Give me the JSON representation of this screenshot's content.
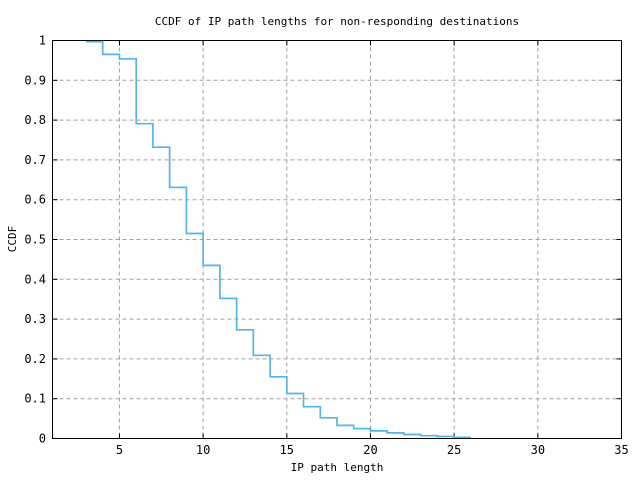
{
  "chart_data": {
    "type": "line",
    "subtype": "step-ccdf",
    "title": "CCDF of IP path lengths for non-responding destinations",
    "xlabel": "IP path length",
    "ylabel": "CCDF",
    "xlim": [
      1,
      35
    ],
    "ylim": [
      0,
      1
    ],
    "x_ticks": [
      5,
      10,
      15,
      20,
      25,
      30,
      35
    ],
    "y_ticks": [
      0,
      0.1,
      0.2,
      0.3,
      0.4,
      0.5,
      0.6,
      0.7,
      0.8,
      0.9,
      1
    ],
    "y_tick_labels": [
      "0",
      "0.1",
      "0.2",
      "0.3",
      "0.4",
      "0.5",
      "0.6",
      "0.7",
      "0.8",
      "0.9",
      "1"
    ],
    "grid": true,
    "legend": "none",
    "series": [
      {
        "name": "ccdf-of-ip-path-length",
        "color": "#56b4e9",
        "x": [
          3,
          4,
          5,
          6,
          7,
          8,
          9,
          10,
          11,
          12,
          13,
          14,
          15,
          16,
          17,
          18,
          19,
          20,
          21,
          22,
          23,
          24,
          25
        ],
        "y": [
          1.0,
          0.965,
          0.954,
          0.791,
          0.732,
          0.631,
          0.515,
          0.435,
          0.352,
          0.273,
          0.209,
          0.155,
          0.113,
          0.08,
          0.052,
          0.033,
          0.025,
          0.019,
          0.014,
          0.01,
          0.007,
          0.005,
          0.003
        ],
        "x_end": 26
      }
    ]
  },
  "colors": {
    "curve": "#56b4e9",
    "grid": "#a0a0a0",
    "axis": "#000000",
    "background": "#ffffff"
  }
}
